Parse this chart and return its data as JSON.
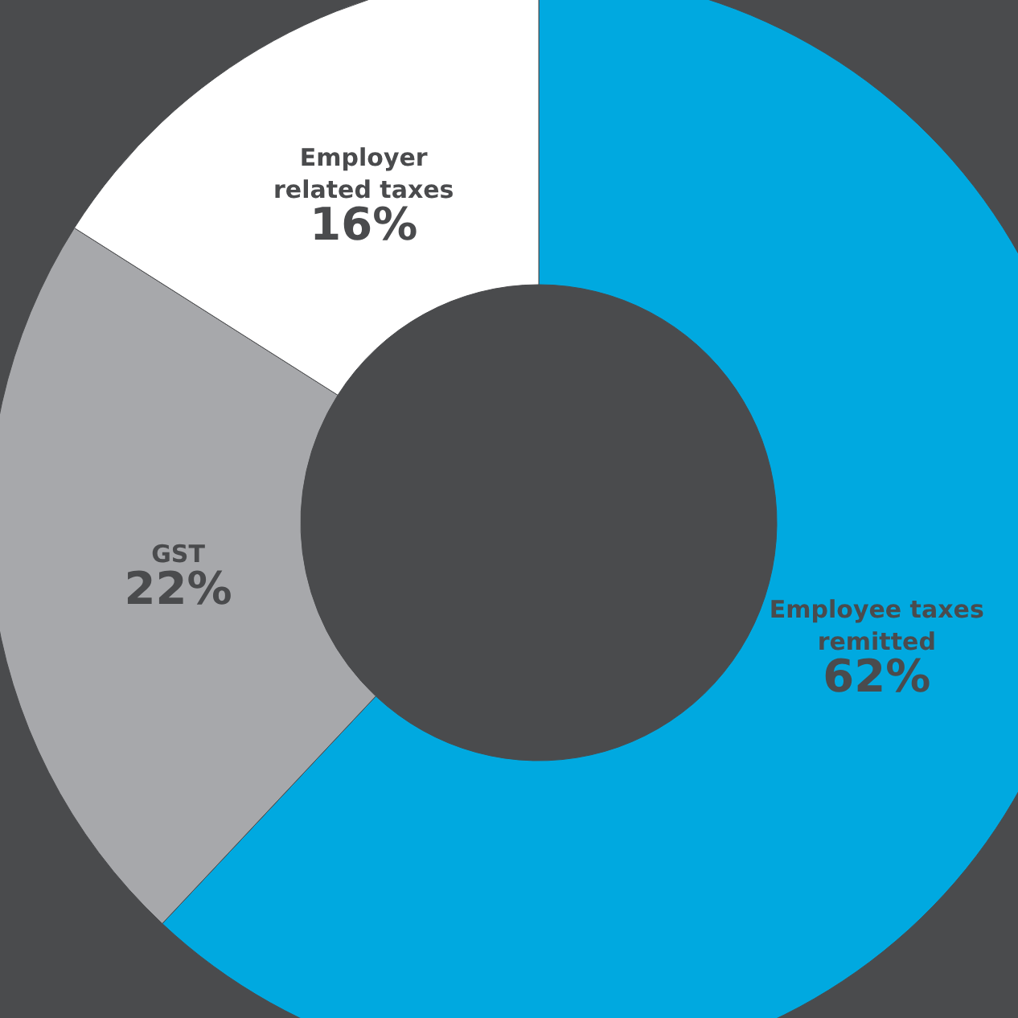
{
  "chart_data": {
    "type": "donut",
    "categories": [
      "Employee taxes remitted",
      "GST",
      "Employer related taxes"
    ],
    "values": [
      62,
      22,
      16
    ],
    "value_labels": [
      "62%",
      "22%",
      "16%"
    ],
    "colors": [
      "#00a9e0",
      "#a7a8ab",
      "#ffffff"
    ]
  }
}
